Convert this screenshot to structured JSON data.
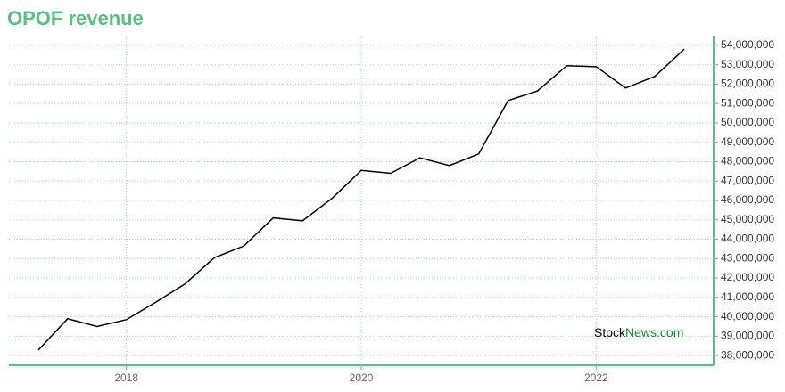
{
  "chart_data": {
    "type": "line",
    "title": "OPOF revenue",
    "x": [
      2017.25,
      2017.5,
      2017.75,
      2018,
      2018.25,
      2018.5,
      2018.75,
      2019,
      2019.25,
      2019.5,
      2019.75,
      2020,
      2020.25,
      2020.5,
      2020.75,
      2021,
      2021.25,
      2021.5,
      2021.75,
      2022,
      2022.25,
      2022.5,
      2022.75
    ],
    "series": [
      {
        "name": "Revenue",
        "color": "#000000",
        "values": [
          38280000,
          39900000,
          39500000,
          39850000,
          40750000,
          41700000,
          43050000,
          43650000,
          45100000,
          44950000,
          46100000,
          47550000,
          47400000,
          48200000,
          47800000,
          48400000,
          51150000,
          51650000,
          52950000,
          52900000,
          51800000,
          52400000,
          53800000
        ]
      }
    ],
    "xlim": [
      2017,
      2023
    ],
    "xticks": [
      2018,
      2020,
      2022
    ],
    "ylim": [
      37500000,
      54500000
    ],
    "yticks": [
      {
        "value": 38000000,
        "label": "38,000,000"
      },
      {
        "value": 39000000,
        "label": "39,000,000"
      },
      {
        "value": 40000000,
        "label": "40,000,000"
      },
      {
        "value": 41000000,
        "label": "41,000,000"
      },
      {
        "value": 42000000,
        "label": "42,000,000"
      },
      {
        "value": 43000000,
        "label": "43,000,000"
      },
      {
        "value": 44000000,
        "label": "44,000,000"
      },
      {
        "value": 45000000,
        "label": "45,000,000"
      },
      {
        "value": 46000000,
        "label": "46,000,000"
      },
      {
        "value": 47000000,
        "label": "47,000,000"
      },
      {
        "value": 48000000,
        "label": "48,000,000"
      },
      {
        "value": 49000000,
        "label": "49,000,000"
      },
      {
        "value": 50000000,
        "label": "50,000,000"
      },
      {
        "value": 51000000,
        "label": "51,000,000"
      },
      {
        "value": 52000000,
        "label": "52,000,000"
      },
      {
        "value": 53000000,
        "label": "53,000,000"
      },
      {
        "value": 54000000,
        "label": "54,000,000"
      }
    ],
    "grid": true,
    "watermark": {
      "part1": "Stock",
      "part2": "News.com"
    }
  }
}
